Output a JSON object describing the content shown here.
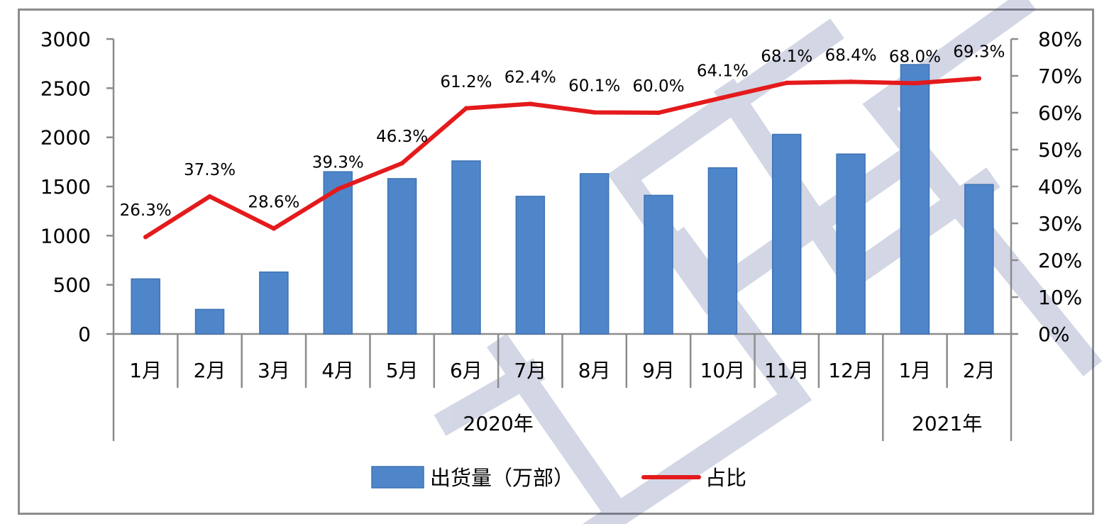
{
  "chart_data": {
    "type": "bar+line",
    "year_groups": [
      {
        "label": "2020年",
        "span": 12
      },
      {
        "label": "2021年",
        "span": 2
      }
    ],
    "categories": [
      "1月",
      "2月",
      "3月",
      "4月",
      "5月",
      "6月",
      "7月",
      "8月",
      "9月",
      "10月",
      "11月",
      "12月",
      "1月",
      "2月"
    ],
    "series": [
      {
        "name": "出货量（万部）",
        "type": "bar",
        "axis": "left",
        "color": "#4f86c9",
        "values": [
          560,
          250,
          630,
          1650,
          1580,
          1760,
          1400,
          1630,
          1410,
          1690,
          2030,
          1830,
          2740,
          1520
        ]
      },
      {
        "name": "占比",
        "type": "line",
        "axis": "right",
        "color": "#e41a1c",
        "values": [
          26.3,
          37.3,
          28.6,
          39.3,
          46.3,
          61.2,
          62.4,
          60.1,
          60.0,
          64.1,
          68.1,
          68.4,
          68.0,
          69.3
        ],
        "labels": [
          "26.3%",
          "37.3%",
          "28.6%",
          "39.3%",
          "46.3%",
          "61.2%",
          "62.4%",
          "60.1%",
          "60.0%",
          "64.1%",
          "68.1%",
          "68.4%",
          "68.0%",
          "69.3%"
        ]
      }
    ],
    "y_left": {
      "min": 0,
      "max": 3000,
      "ticks": [
        "0",
        "500",
        "1000",
        "1500",
        "2000",
        "2500",
        "3000"
      ]
    },
    "y_right": {
      "min": 0,
      "max": 80,
      "ticks": [
        "0%",
        "10%",
        "20%",
        "30%",
        "40%",
        "50%",
        "60%",
        "70%",
        "80%"
      ]
    },
    "legend_position": "bottom",
    "grid": false
  }
}
